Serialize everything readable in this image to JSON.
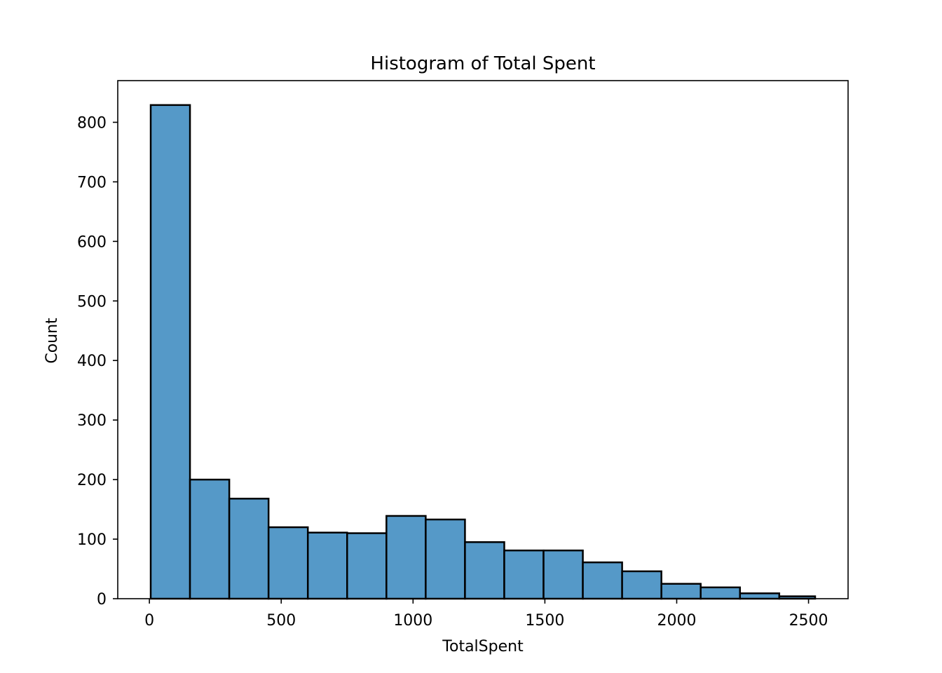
{
  "chart_data": {
    "type": "bar",
    "title": "Histogram of Total Spent",
    "xlabel": "TotalSpent",
    "ylabel": "Count",
    "bar_color": "#5599c8",
    "edge_color": "#000000",
    "bin_edges": [
      5,
      154,
      303,
      452,
      601,
      750,
      899,
      1048,
      1197,
      1346,
      1495,
      1644,
      1793,
      1942,
      2091,
      2240,
      2389,
      2525
    ],
    "counts": [
      829,
      200,
      168,
      120,
      111,
      110,
      139,
      133,
      95,
      81,
      81,
      61,
      46,
      25,
      19,
      9,
      4
    ],
    "xlim": [
      -120,
      2650
    ],
    "ylim": [
      0,
      870
    ],
    "xticks": [
      0,
      500,
      1000,
      1500,
      2000,
      2500
    ],
    "yticks": [
      0,
      100,
      200,
      300,
      400,
      500,
      600,
      700,
      800
    ],
    "grid": false
  }
}
